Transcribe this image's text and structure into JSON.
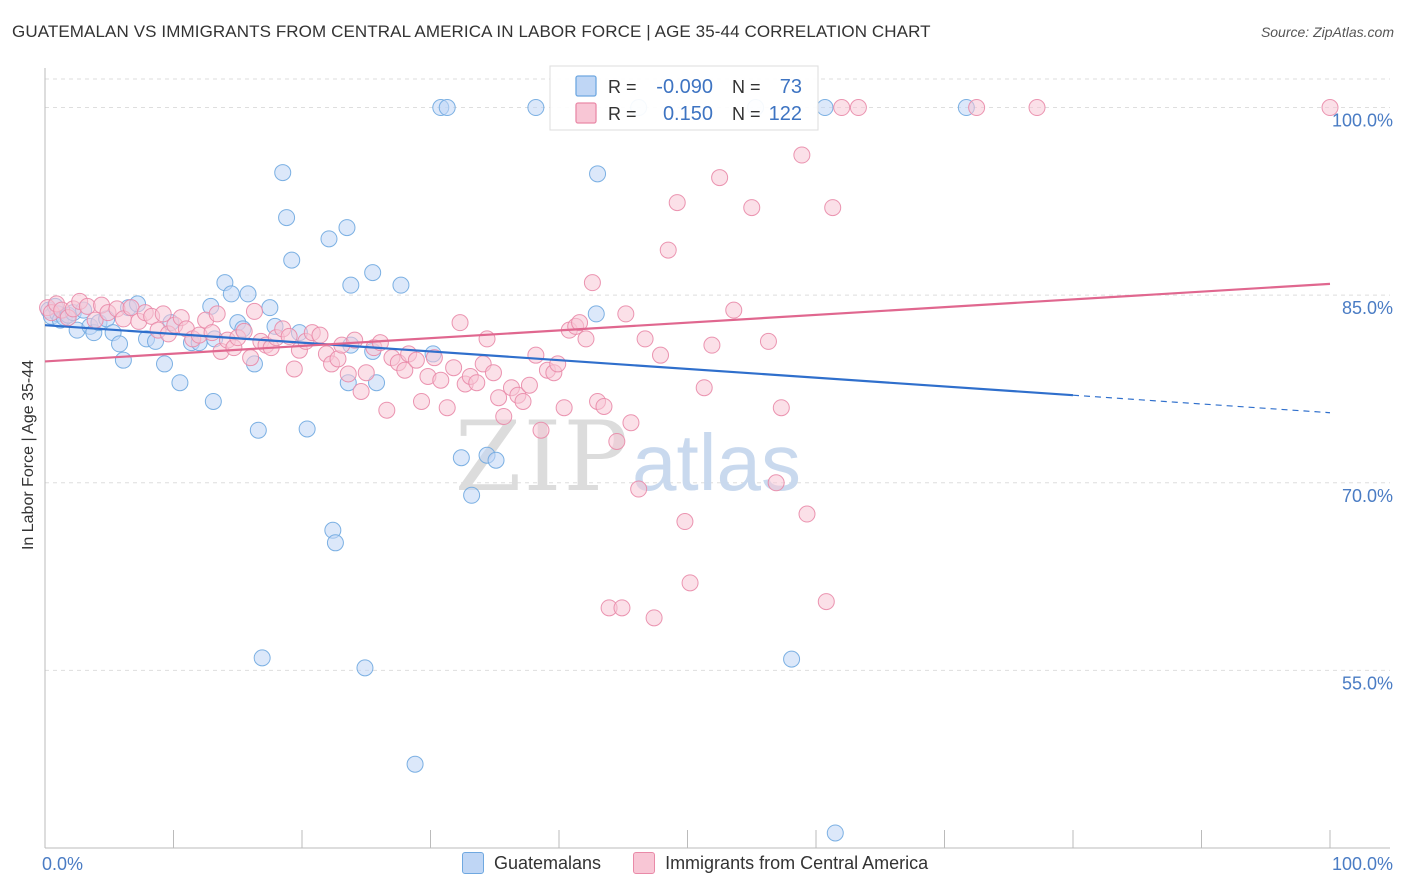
{
  "header": {
    "title": "GUATEMALAN VS IMMIGRANTS FROM CENTRAL AMERICA IN LABOR FORCE | AGE 35-44 CORRELATION CHART",
    "source": "Source: ZipAtlas.com"
  },
  "watermark": {
    "zip": "ZIP",
    "atlas": "atlas"
  },
  "stats": {
    "rows": [
      {
        "r_label": "R =",
        "r_value": "-0.090",
        "n_label": "N =",
        "n_value": "73",
        "color": "#6fa8e0",
        "fill": "#bfd6f5"
      },
      {
        "r_label": "R =",
        "r_value": "0.150",
        "n_label": "N =",
        "n_value": "122",
        "color": "#e98aa8",
        "fill": "#f8c6d5"
      }
    ]
  },
  "legend": {
    "items": [
      {
        "label": "Guatemalans",
        "color": "#6fa8e0",
        "fill": "#bfd6f5"
      },
      {
        "label": "Immigrants from Central America",
        "color": "#e98aa8",
        "fill": "#f8c6d5"
      }
    ]
  },
  "chart_data": {
    "type": "scatter",
    "title": "GUATEMALAN VS IMMIGRANTS FROM CENTRAL AMERICA IN LABOR FORCE | AGE 35-44 CORRELATION CHART",
    "xlabel": "",
    "ylabel": "In Labor Force | Age 35-44",
    "xlim": [
      0,
      100
    ],
    "ylim": [
      40.8,
      102.6
    ],
    "x_tick_labels": [
      "0.0%",
      "100.0%"
    ],
    "y_ticks": [
      55,
      70,
      85,
      100
    ],
    "y_tick_labels": [
      "55.0%",
      "70.0%",
      "85.0%",
      "100.0%"
    ],
    "grid": true,
    "legend_position": "bottom",
    "series": [
      {
        "name": "Guatemalans",
        "color": "#6fa8e0",
        "fill": "#bfd6f5",
        "R": -0.09,
        "N": 73,
        "trend": {
          "x": [
            0,
            80,
            100
          ],
          "y": [
            82.6,
            77.0,
            75.6
          ],
          "solid_until": 80
        },
        "points": [
          [
            0.3,
            83.8
          ],
          [
            0.5,
            83.3
          ],
          [
            0.8,
            84.1
          ],
          [
            1.0,
            83.5
          ],
          [
            1.2,
            83.0
          ],
          [
            1.5,
            83.2
          ],
          [
            1.8,
            83.4
          ],
          [
            2.2,
            83.6
          ],
          [
            2.5,
            82.2
          ],
          [
            3.0,
            83.8
          ],
          [
            3.5,
            82.5
          ],
          [
            3.8,
            82.0
          ],
          [
            4.2,
            82.8
          ],
          [
            4.8,
            83.1
          ],
          [
            5.3,
            82.0
          ],
          [
            5.8,
            81.1
          ],
          [
            6.1,
            79.8
          ],
          [
            6.5,
            84.0
          ],
          [
            7.2,
            84.3
          ],
          [
            7.9,
            81.5
          ],
          [
            8.6,
            81.3
          ],
          [
            9.3,
            79.5
          ],
          [
            9.8,
            82.8
          ],
          [
            10.5,
            78.0
          ],
          [
            11.4,
            81.2
          ],
          [
            12.0,
            81.2
          ],
          [
            12.9,
            84.1
          ],
          [
            13.1,
            76.5
          ],
          [
            13.2,
            81.5
          ],
          [
            14.0,
            86.0
          ],
          [
            14.5,
            85.1
          ],
          [
            15.0,
            82.8
          ],
          [
            15.4,
            82.3
          ],
          [
            15.8,
            85.1
          ],
          [
            16.3,
            79.5
          ],
          [
            16.6,
            74.2
          ],
          [
            16.9,
            56.0
          ],
          [
            17.5,
            84.0
          ],
          [
            17.9,
            82.5
          ],
          [
            18.5,
            94.8
          ],
          [
            18.8,
            91.2
          ],
          [
            19.2,
            87.8
          ],
          [
            19.8,
            82.0
          ],
          [
            20.4,
            74.3
          ],
          [
            22.1,
            89.5
          ],
          [
            22.4,
            66.2
          ],
          [
            22.6,
            65.2
          ],
          [
            23.8,
            81.0
          ],
          [
            23.6,
            78.0
          ],
          [
            23.5,
            90.4
          ],
          [
            23.8,
            85.8
          ],
          [
            24.9,
            55.2
          ],
          [
            25.5,
            80.5
          ],
          [
            25.5,
            86.8
          ],
          [
            25.8,
            78.0
          ],
          [
            27.7,
            85.8
          ],
          [
            28.8,
            47.5
          ],
          [
            30.2,
            80.3
          ],
          [
            30.8,
            100.0
          ],
          [
            31.3,
            100.0
          ],
          [
            32.4,
            72.0
          ],
          [
            33.2,
            69.0
          ],
          [
            34.4,
            72.2
          ],
          [
            35.1,
            71.8
          ],
          [
            38.2,
            100.0
          ],
          [
            43.0,
            94.7
          ],
          [
            42.9,
            83.5
          ],
          [
            46.2,
            100.0
          ],
          [
            55.3,
            100.0
          ],
          [
            58.1,
            55.9
          ],
          [
            60.7,
            100.0
          ],
          [
            61.5,
            42.0
          ],
          [
            71.7,
            100.0
          ]
        ]
      },
      {
        "name": "Immigrants from Central America",
        "color": "#e98aa8",
        "fill": "#f8c6d5",
        "R": 0.15,
        "N": 122,
        "trend": {
          "x": [
            0,
            100
          ],
          "y": [
            79.7,
            85.9
          ]
        },
        "points": [
          [
            0.2,
            84.0
          ],
          [
            0.5,
            83.6
          ],
          [
            0.9,
            84.3
          ],
          [
            1.3,
            83.8
          ],
          [
            1.8,
            83.2
          ],
          [
            2.2,
            83.9
          ],
          [
            2.7,
            84.5
          ],
          [
            3.3,
            84.1
          ],
          [
            3.9,
            83.0
          ],
          [
            4.4,
            84.2
          ],
          [
            4.9,
            83.6
          ],
          [
            5.6,
            83.9
          ],
          [
            6.1,
            83.1
          ],
          [
            6.7,
            84.0
          ],
          [
            7.3,
            82.9
          ],
          [
            7.8,
            83.6
          ],
          [
            8.3,
            83.3
          ],
          [
            8.8,
            82.2
          ],
          [
            9.2,
            83.5
          ],
          [
            9.6,
            81.9
          ],
          [
            10.1,
            82.6
          ],
          [
            10.6,
            83.2
          ],
          [
            11.0,
            82.3
          ],
          [
            11.5,
            81.5
          ],
          [
            12.0,
            81.8
          ],
          [
            12.5,
            83.0
          ],
          [
            13.0,
            82.0
          ],
          [
            13.4,
            83.5
          ],
          [
            13.7,
            80.5
          ],
          [
            14.2,
            81.4
          ],
          [
            14.7,
            80.8
          ],
          [
            15.0,
            81.6
          ],
          [
            15.5,
            82.1
          ],
          [
            16.0,
            80.0
          ],
          [
            16.3,
            83.7
          ],
          [
            16.8,
            81.3
          ],
          [
            17.2,
            81.0
          ],
          [
            17.6,
            80.8
          ],
          [
            18.0,
            81.6
          ],
          [
            18.5,
            82.3
          ],
          [
            19.0,
            81.7
          ],
          [
            19.4,
            79.1
          ],
          [
            19.8,
            80.6
          ],
          [
            20.3,
            81.3
          ],
          [
            20.8,
            82.0
          ],
          [
            21.4,
            81.8
          ],
          [
            21.9,
            80.3
          ],
          [
            22.3,
            79.5
          ],
          [
            22.8,
            79.9
          ],
          [
            23.1,
            81.0
          ],
          [
            23.6,
            78.7
          ],
          [
            24.1,
            81.4
          ],
          [
            24.6,
            77.3
          ],
          [
            25.0,
            78.8
          ],
          [
            25.6,
            80.8
          ],
          [
            26.1,
            81.2
          ],
          [
            26.6,
            75.8
          ],
          [
            27.0,
            80.0
          ],
          [
            27.5,
            79.6
          ],
          [
            28.0,
            79.0
          ],
          [
            28.3,
            80.3
          ],
          [
            28.9,
            79.8
          ],
          [
            29.3,
            76.5
          ],
          [
            29.8,
            78.5
          ],
          [
            30.3,
            80.0
          ],
          [
            30.8,
            78.2
          ],
          [
            31.3,
            76.0
          ],
          [
            31.8,
            79.2
          ],
          [
            32.3,
            82.8
          ],
          [
            32.7,
            77.9
          ],
          [
            33.1,
            78.5
          ],
          [
            33.6,
            78.0
          ],
          [
            34.1,
            79.5
          ],
          [
            34.4,
            81.5
          ],
          [
            34.9,
            78.8
          ],
          [
            35.3,
            76.8
          ],
          [
            35.7,
            75.3
          ],
          [
            36.3,
            77.6
          ],
          [
            36.8,
            77.0
          ],
          [
            37.2,
            76.5
          ],
          [
            37.7,
            77.8
          ],
          [
            38.2,
            80.2
          ],
          [
            38.6,
            74.2
          ],
          [
            39.1,
            79.0
          ],
          [
            39.6,
            78.8
          ],
          [
            39.9,
            79.5
          ],
          [
            40.4,
            76.0
          ],
          [
            40.8,
            82.2
          ],
          [
            41.3,
            82.5
          ],
          [
            41.6,
            82.8
          ],
          [
            42.1,
            81.5
          ],
          [
            42.6,
            86.0
          ],
          [
            43.0,
            76.5
          ],
          [
            43.5,
            76.1
          ],
          [
            43.9,
            60.0
          ],
          [
            44.5,
            73.3
          ],
          [
            44.9,
            60.0
          ],
          [
            45.2,
            83.5
          ],
          [
            45.6,
            74.8
          ],
          [
            46.2,
            69.5
          ],
          [
            46.7,
            81.5
          ],
          [
            47.4,
            59.2
          ],
          [
            47.9,
            80.2
          ],
          [
            48.5,
            88.6
          ],
          [
            49.2,
            92.4
          ],
          [
            49.8,
            66.9
          ],
          [
            50.2,
            62.0
          ],
          [
            51.3,
            77.6
          ],
          [
            51.9,
            81.0
          ],
          [
            52.5,
            94.4
          ],
          [
            53.6,
            83.8
          ],
          [
            55.0,
            92.0
          ],
          [
            56.3,
            81.3
          ],
          [
            56.9,
            70.0
          ],
          [
            57.3,
            76.0
          ],
          [
            58.9,
            96.2
          ],
          [
            59.3,
            67.5
          ],
          [
            60.8,
            60.5
          ],
          [
            61.3,
            92.0
          ],
          [
            62.0,
            100.0
          ],
          [
            63.3,
            100.0
          ],
          [
            72.5,
            100.0
          ],
          [
            77.2,
            100.0
          ],
          [
            100.0,
            100.0
          ]
        ]
      }
    ]
  }
}
